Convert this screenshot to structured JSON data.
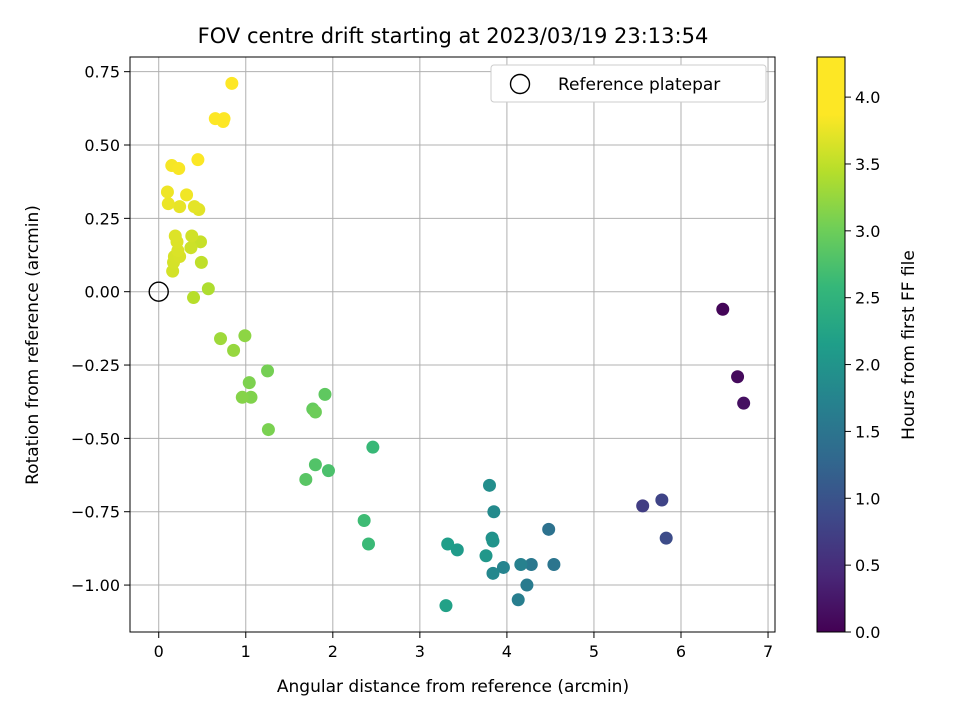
{
  "chart_data": {
    "type": "scatter",
    "title": "FOV centre drift starting at 2023/03/19 23:13:54",
    "xlabel": "Angular distance from reference (arcmin)",
    "ylabel": "Rotation from reference (arcmin)",
    "xlim": [
      -0.33,
      7.08
    ],
    "ylim": [
      -1.16,
      0.8
    ],
    "xticks": [
      0,
      1,
      2,
      3,
      4,
      5,
      6,
      7
    ],
    "xtick_labels": [
      "0",
      "1",
      "2",
      "3",
      "4",
      "5",
      "6",
      "7"
    ],
    "yticks": [
      0.75,
      0.5,
      0.25,
      0.0,
      -0.25,
      -0.5,
      -0.75,
      -1.0
    ],
    "ytick_labels": [
      "0.75",
      "0.50",
      "0.25",
      "0.00",
      "−0.25",
      "−0.50",
      "−0.75",
      "−1.00"
    ],
    "grid": true,
    "legend": {
      "position": "top-right",
      "entries": [
        "Reference platepar"
      ]
    },
    "reference_point": {
      "x": 0.0,
      "y": 0.0
    },
    "colorbar": {
      "label": "Hours from first FF file",
      "colormap": "viridis",
      "range": [
        0.0,
        4.3
      ],
      "ticks": [
        0.0,
        0.5,
        1.0,
        1.5,
        2.0,
        2.5,
        3.0,
        3.5,
        4.0
      ],
      "tick_labels": [
        "0.0",
        "0.5",
        "1.0",
        "1.5",
        "2.0",
        "2.5",
        "3.0",
        "3.5",
        "4.0"
      ]
    },
    "points": [
      {
        "x": 6.48,
        "y": -0.06,
        "h": 0.05
      },
      {
        "x": 6.65,
        "y": -0.29,
        "h": 0.1
      },
      {
        "x": 6.72,
        "y": -0.38,
        "h": 0.15
      },
      {
        "x": 5.56,
        "y": -0.73,
        "h": 0.7
      },
      {
        "x": 5.78,
        "y": -0.71,
        "h": 0.8
      },
      {
        "x": 5.83,
        "y": -0.84,
        "h": 0.9
      },
      {
        "x": 4.48,
        "y": -0.81,
        "h": 1.45
      },
      {
        "x": 4.54,
        "y": -0.93,
        "h": 1.5
      },
      {
        "x": 4.28,
        "y": -0.93,
        "h": 1.55
      },
      {
        "x": 4.23,
        "y": -1.0,
        "h": 1.6
      },
      {
        "x": 4.13,
        "y": -1.05,
        "h": 1.65
      },
      {
        "x": 4.16,
        "y": -0.93,
        "h": 1.7
      },
      {
        "x": 3.96,
        "y": -0.94,
        "h": 1.75
      },
      {
        "x": 3.84,
        "y": -0.96,
        "h": 1.8
      },
      {
        "x": 3.85,
        "y": -0.75,
        "h": 1.85
      },
      {
        "x": 3.8,
        "y": -0.66,
        "h": 1.9
      },
      {
        "x": 3.83,
        "y": -0.84,
        "h": 1.95
      },
      {
        "x": 3.84,
        "y": -0.85,
        "h": 2.0
      },
      {
        "x": 3.76,
        "y": -0.9,
        "h": 2.05
      },
      {
        "x": 3.43,
        "y": -0.88,
        "h": 2.1
      },
      {
        "x": 3.32,
        "y": -0.86,
        "h": 2.15
      },
      {
        "x": 3.3,
        "y": -1.07,
        "h": 2.2
      },
      {
        "x": 2.46,
        "y": -0.53,
        "h": 2.6
      },
      {
        "x": 2.41,
        "y": -0.86,
        "h": 2.62
      },
      {
        "x": 2.36,
        "y": -0.78,
        "h": 2.65
      },
      {
        "x": 1.95,
        "y": -0.61,
        "h": 2.75
      },
      {
        "x": 1.8,
        "y": -0.59,
        "h": 2.8
      },
      {
        "x": 1.69,
        "y": -0.64,
        "h": 2.85
      },
      {
        "x": 1.91,
        "y": -0.35,
        "h": 2.9
      },
      {
        "x": 1.77,
        "y": -0.4,
        "h": 2.95
      },
      {
        "x": 1.8,
        "y": -0.41,
        "h": 3.0
      },
      {
        "x": 1.25,
        "y": -0.27,
        "h": 3.05
      },
      {
        "x": 1.26,
        "y": -0.47,
        "h": 3.08
      },
      {
        "x": 1.04,
        "y": -0.31,
        "h": 3.1
      },
      {
        "x": 1.06,
        "y": -0.36,
        "h": 3.12
      },
      {
        "x": 0.96,
        "y": -0.36,
        "h": 3.15
      },
      {
        "x": 0.99,
        "y": -0.15,
        "h": 3.2
      },
      {
        "x": 0.86,
        "y": -0.2,
        "h": 3.25
      },
      {
        "x": 0.71,
        "y": -0.16,
        "h": 3.3
      },
      {
        "x": 0.57,
        "y": 0.01,
        "h": 3.4
      },
      {
        "x": 0.4,
        "y": -0.02,
        "h": 3.45
      },
      {
        "x": 0.49,
        "y": 0.1,
        "h": 3.5
      },
      {
        "x": 0.48,
        "y": 0.17,
        "h": 3.55
      },
      {
        "x": 0.37,
        "y": 0.15,
        "h": 3.58
      },
      {
        "x": 0.38,
        "y": 0.19,
        "h": 3.6
      },
      {
        "x": 0.16,
        "y": 0.07,
        "h": 3.62
      },
      {
        "x": 0.17,
        "y": 0.1,
        "h": 3.63
      },
      {
        "x": 0.18,
        "y": 0.12,
        "h": 3.64
      },
      {
        "x": 0.24,
        "y": 0.12,
        "h": 3.65
      },
      {
        "x": 0.22,
        "y": 0.14,
        "h": 3.66
      },
      {
        "x": 0.21,
        "y": 0.17,
        "h": 3.67
      },
      {
        "x": 0.19,
        "y": 0.19,
        "h": 3.68
      },
      {
        "x": 0.46,
        "y": 0.28,
        "h": 3.7
      },
      {
        "x": 0.41,
        "y": 0.29,
        "h": 3.72
      },
      {
        "x": 0.24,
        "y": 0.29,
        "h": 3.74
      },
      {
        "x": 0.11,
        "y": 0.3,
        "h": 3.76
      },
      {
        "x": 0.1,
        "y": 0.34,
        "h": 3.78
      },
      {
        "x": 0.32,
        "y": 0.33,
        "h": 3.8
      },
      {
        "x": 0.15,
        "y": 0.43,
        "h": 3.82
      },
      {
        "x": 0.23,
        "y": 0.42,
        "h": 3.84
      },
      {
        "x": 0.45,
        "y": 0.45,
        "h": 3.86
      },
      {
        "x": 0.65,
        "y": 0.59,
        "h": 4.15
      },
      {
        "x": 0.75,
        "y": 0.59,
        "h": 4.2
      },
      {
        "x": 0.74,
        "y": 0.58,
        "h": 4.22
      },
      {
        "x": 0.84,
        "y": 0.71,
        "h": 4.28
      }
    ]
  }
}
